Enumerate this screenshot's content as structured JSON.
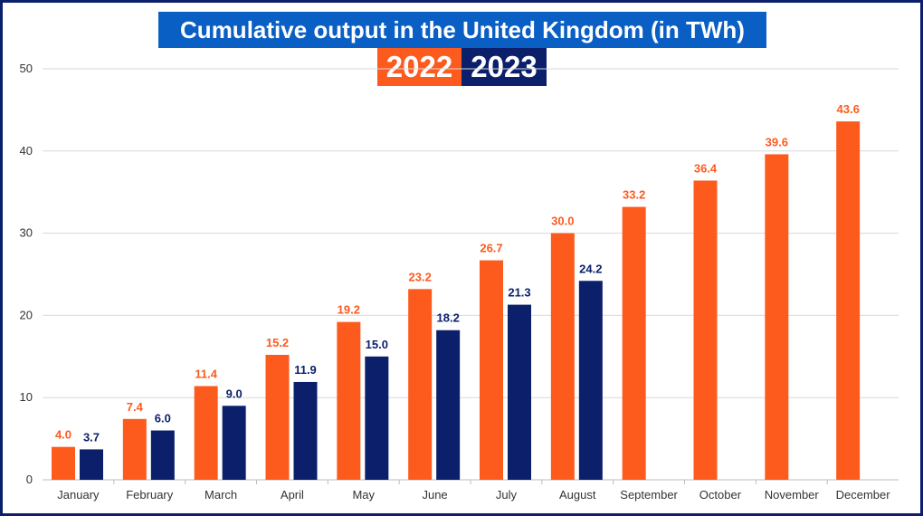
{
  "chart_data": {
    "type": "bar",
    "title": "Cumulative output in the United Kingdom (in TWh)",
    "categories": [
      "January",
      "February",
      "March",
      "April",
      "May",
      "June",
      "July",
      "August",
      "September",
      "October",
      "November",
      "December"
    ],
    "series": [
      {
        "name": "2022",
        "color": "#fd5a1e",
        "values": [
          4.0,
          7.4,
          11.4,
          15.2,
          19.2,
          23.2,
          26.7,
          30.0,
          33.2,
          36.4,
          39.6,
          43.6
        ]
      },
      {
        "name": "2023",
        "color": "#0b1f6b",
        "values": [
          3.7,
          6.0,
          9.0,
          11.9,
          15.0,
          18.2,
          21.3,
          24.2,
          null,
          null,
          null,
          null
        ]
      }
    ],
    "ylim": [
      0,
      50
    ],
    "yticks": [
      0,
      10,
      20,
      30,
      40,
      50
    ],
    "xlabel": "",
    "ylabel": "",
    "grid": true,
    "legend": "top-center"
  }
}
